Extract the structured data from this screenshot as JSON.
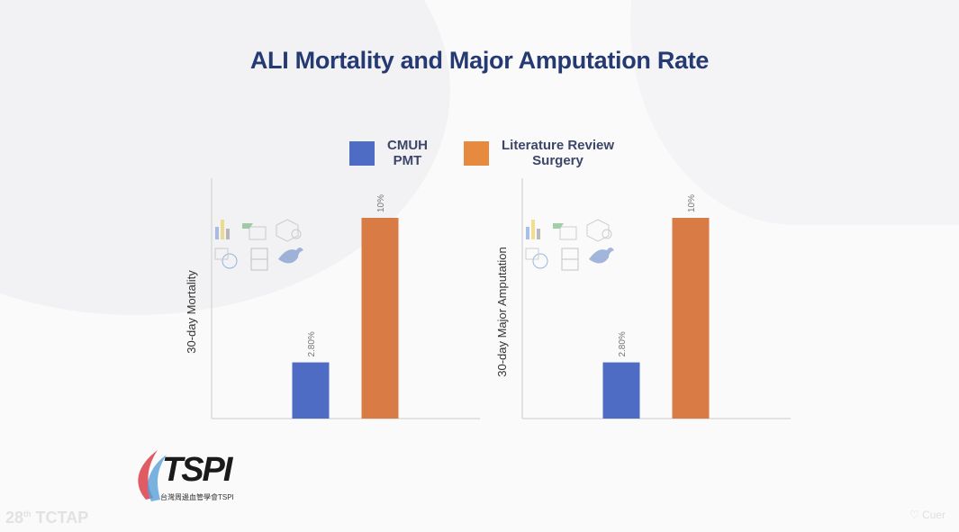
{
  "slide": {
    "title": "ALI Mortality and Major Amputation Rate"
  },
  "legend": [
    {
      "line1": "CMUH",
      "line2": "PMT",
      "color": "#4f6cc4"
    },
    {
      "line1": "Literature Review",
      "line2": "Surgery",
      "color": "#e58a3e"
    }
  ],
  "chart_data": [
    {
      "type": "bar",
      "title": "",
      "xlabel": "",
      "ylabel": "30-day Mortality",
      "categories": [
        "CMUH PMT",
        "Literature Review Surgery"
      ],
      "values": [
        2.8,
        10
      ],
      "data_labels": [
        "2.80%",
        "10%"
      ],
      "colors": [
        "#4f6cc4",
        "#d97b45"
      ],
      "ylim": [
        0,
        10
      ],
      "grid": false,
      "legend": "top"
    },
    {
      "type": "bar",
      "title": "",
      "xlabel": "",
      "ylabel": "30-day Major Amputation",
      "categories": [
        "CMUH PMT",
        "Literature Review Surgery"
      ],
      "values": [
        2.8,
        10
      ],
      "data_labels": [
        "2.80%",
        "10%"
      ],
      "colors": [
        "#4f6cc4",
        "#d97b45"
      ],
      "ylim": [
        0,
        10
      ],
      "grid": false,
      "legend": "top"
    }
  ],
  "logo": {
    "text": "TSPI",
    "subtitle": "台灣周邊血管學會TSPI"
  },
  "footer": {
    "left_num": "28",
    "left_sup": "th",
    "left_text": "TCTAP",
    "right_text": "Cuer"
  },
  "icons": [
    "bar-chart-icon",
    "table-icon",
    "3d-model-icon",
    "online-picture-icon",
    "video-icon",
    "smartart-icon"
  ]
}
